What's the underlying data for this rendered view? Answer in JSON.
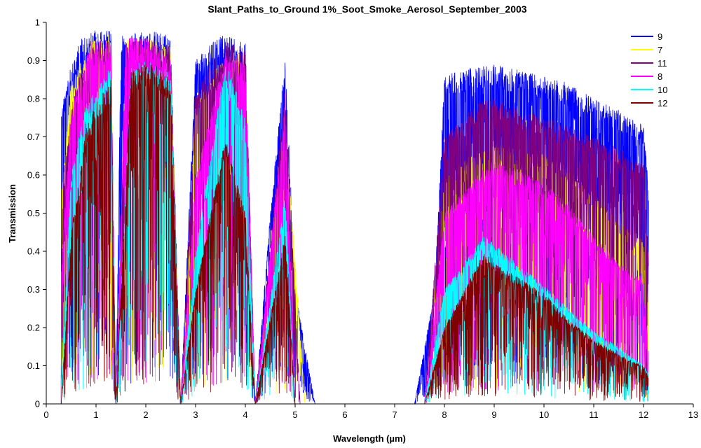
{
  "chart_data": {
    "type": "line",
    "title": "Slant_Paths_to_Ground 1%_Soot_Smoke_Aerosol_September_2003",
    "xlabel": "Wavelength (µm)",
    "ylabel": "Transmission",
    "xlim": [
      0,
      13
    ],
    "ylim": [
      0,
      1
    ],
    "x_ticks": [
      "0",
      "1",
      "2",
      "3",
      "4",
      "5",
      "6",
      "7",
      "8",
      "9",
      "10",
      "11",
      "12",
      "13"
    ],
    "y_ticks": [
      "0",
      "0.1",
      "0.2",
      "0.3",
      "0.4",
      "0.5",
      "0.6",
      "0.7",
      "0.8",
      "0.9",
      "1"
    ],
    "grid": false,
    "legend_position": "top-right",
    "series": [
      {
        "name": "9",
        "color": "#0000FF"
      },
      {
        "name": "7",
        "color": "#FFFF00"
      },
      {
        "name": "11",
        "color": "#800080"
      },
      {
        "name": "8",
        "color": "#FF00FF"
      },
      {
        "name": "10",
        "color": "#00FFFF"
      },
      {
        "name": "12",
        "color": "#800000"
      }
    ],
    "envelopes": [
      {
        "series": "9",
        "points": [
          [
            0.3,
            0.77
          ],
          [
            0.5,
            0.9
          ],
          [
            0.7,
            0.96
          ],
          [
            1.0,
            0.98
          ],
          [
            1.3,
            0.98
          ],
          [
            1.4,
            0.0
          ],
          [
            1.5,
            0.97
          ],
          [
            1.9,
            0.98
          ],
          [
            2.0,
            0.98
          ],
          [
            2.5,
            0.97
          ],
          [
            2.7,
            0.0
          ],
          [
            3.0,
            0.9
          ],
          [
            3.5,
            0.97
          ],
          [
            4.0,
            0.95
          ],
          [
            4.2,
            0.0
          ],
          [
            4.5,
            0.5
          ],
          [
            4.8,
            0.91
          ],
          [
            5.0,
            0.3
          ],
          [
            5.4,
            0.0
          ],
          [
            7.4,
            0.0
          ],
          [
            7.8,
            0.3
          ],
          [
            8.0,
            0.86
          ],
          [
            8.5,
            0.88
          ],
          [
            9.0,
            0.89
          ],
          [
            10.0,
            0.86
          ],
          [
            10.5,
            0.84
          ],
          [
            11.0,
            0.8
          ],
          [
            11.5,
            0.77
          ],
          [
            12.0,
            0.73
          ],
          [
            12.1,
            0.57
          ]
        ]
      },
      {
        "series": "7",
        "points": [
          [
            0.3,
            0.55
          ],
          [
            0.5,
            0.84
          ],
          [
            0.8,
            0.93
          ],
          [
            1.0,
            0.96
          ],
          [
            1.3,
            0.97
          ],
          [
            1.4,
            0.0
          ],
          [
            1.6,
            0.96
          ],
          [
            2.1,
            0.96
          ],
          [
            2.5,
            0.95
          ],
          [
            2.7,
            0.0
          ],
          [
            3.0,
            0.8
          ],
          [
            3.7,
            0.94
          ],
          [
            4.0,
            0.92
          ],
          [
            4.2,
            0.0
          ],
          [
            4.8,
            0.75
          ],
          [
            5.2,
            0.0
          ],
          [
            7.6,
            0.0
          ],
          [
            8.0,
            0.6
          ],
          [
            8.5,
            0.65
          ],
          [
            9.0,
            0.68
          ],
          [
            10.0,
            0.66
          ],
          [
            10.5,
            0.62
          ],
          [
            11.0,
            0.55
          ],
          [
            11.5,
            0.48
          ],
          [
            12.0,
            0.43
          ],
          [
            12.1,
            0.27
          ]
        ]
      },
      {
        "series": "11",
        "points": [
          [
            0.3,
            0.55
          ],
          [
            0.6,
            0.85
          ],
          [
            1.0,
            0.95
          ],
          [
            1.3,
            0.96
          ],
          [
            1.4,
            0.0
          ],
          [
            1.6,
            0.96
          ],
          [
            2.1,
            0.96
          ],
          [
            2.5,
            0.94
          ],
          [
            2.7,
            0.0
          ],
          [
            3.0,
            0.82
          ],
          [
            3.6,
            0.95
          ],
          [
            4.0,
            0.93
          ],
          [
            4.2,
            0.0
          ],
          [
            4.8,
            0.83
          ],
          [
            5.1,
            0.0
          ],
          [
            7.6,
            0.0
          ],
          [
            8.0,
            0.7
          ],
          [
            8.7,
            0.79
          ],
          [
            9.0,
            0.8
          ],
          [
            10.0,
            0.75
          ],
          [
            10.5,
            0.73
          ],
          [
            11.0,
            0.7
          ],
          [
            11.5,
            0.67
          ],
          [
            12.0,
            0.63
          ],
          [
            12.1,
            0.38
          ]
        ]
      },
      {
        "series": "8",
        "points": [
          [
            0.3,
            0.35
          ],
          [
            0.5,
            0.78
          ],
          [
            0.9,
            0.95
          ],
          [
            1.3,
            0.96
          ],
          [
            1.4,
            0.0
          ],
          [
            1.6,
            0.96
          ],
          [
            2.1,
            0.96
          ],
          [
            2.5,
            0.9
          ],
          [
            2.7,
            0.0
          ],
          [
            3.0,
            0.6
          ],
          [
            3.6,
            0.92
          ],
          [
            4.0,
            0.9
          ],
          [
            4.2,
            0.0
          ],
          [
            4.8,
            0.8
          ],
          [
            5.0,
            0.0
          ],
          [
            7.6,
            0.0
          ],
          [
            8.0,
            0.5
          ],
          [
            8.8,
            0.62
          ],
          [
            9.0,
            0.64
          ],
          [
            10.0,
            0.58
          ],
          [
            10.5,
            0.52
          ],
          [
            11.0,
            0.44
          ],
          [
            11.5,
            0.37
          ],
          [
            12.0,
            0.33
          ],
          [
            12.1,
            0.14
          ]
        ]
      },
      {
        "series": "10",
        "points": [
          [
            0.3,
            0.05
          ],
          [
            0.5,
            0.6
          ],
          [
            0.8,
            0.79
          ],
          [
            1.0,
            0.82
          ],
          [
            1.3,
            0.9
          ],
          [
            1.4,
            0.0
          ],
          [
            1.7,
            0.89
          ],
          [
            2.1,
            0.9
          ],
          [
            2.5,
            0.87
          ],
          [
            2.7,
            0.0
          ],
          [
            3.0,
            0.4
          ],
          [
            3.6,
            0.9
          ],
          [
            4.0,
            0.75
          ],
          [
            4.2,
            0.0
          ],
          [
            4.8,
            0.55
          ],
          [
            5.0,
            0.0
          ],
          [
            7.6,
            0.0
          ],
          [
            8.0,
            0.3
          ],
          [
            8.8,
            0.44
          ],
          [
            9.0,
            0.42
          ],
          [
            10.0,
            0.31
          ],
          [
            10.5,
            0.25
          ],
          [
            11.0,
            0.19
          ],
          [
            11.5,
            0.15
          ],
          [
            12.0,
            0.1
          ],
          [
            12.1,
            0.08
          ]
        ]
      },
      {
        "series": "12",
        "points": [
          [
            0.3,
            0.0
          ],
          [
            0.5,
            0.45
          ],
          [
            0.8,
            0.72
          ],
          [
            1.0,
            0.79
          ],
          [
            1.3,
            0.85
          ],
          [
            1.4,
            0.0
          ],
          [
            1.7,
            0.87
          ],
          [
            2.1,
            0.9
          ],
          [
            2.5,
            0.85
          ],
          [
            2.7,
            0.0
          ],
          [
            3.0,
            0.3
          ],
          [
            3.6,
            0.7
          ],
          [
            4.0,
            0.5
          ],
          [
            4.2,
            0.0
          ],
          [
            4.8,
            0.45
          ],
          [
            5.0,
            0.0
          ],
          [
            7.6,
            0.0
          ],
          [
            8.0,
            0.2
          ],
          [
            8.8,
            0.4
          ],
          [
            9.0,
            0.37
          ],
          [
            10.0,
            0.29
          ],
          [
            10.5,
            0.22
          ],
          [
            11.0,
            0.17
          ],
          [
            11.5,
            0.13
          ],
          [
            12.0,
            0.1
          ],
          [
            12.1,
            0.07
          ]
        ]
      }
    ]
  }
}
